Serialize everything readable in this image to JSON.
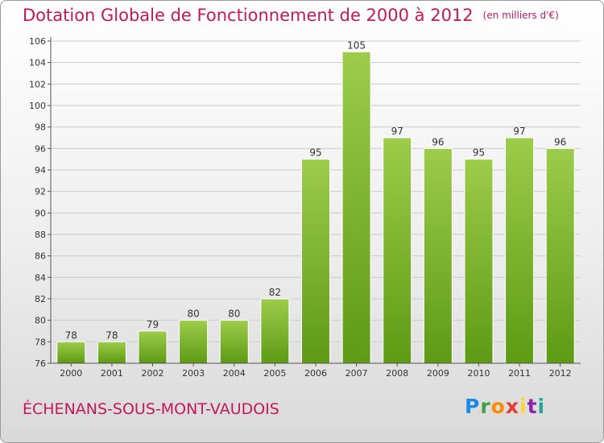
{
  "chart_data": {
    "type": "bar",
    "title": "Dotation Globale de Fonctionnement de 2000 à 2012",
    "subtitle": "(en milliers d'€)",
    "categories": [
      "2000",
      "2001",
      "2002",
      "2003",
      "2004",
      "2005",
      "2006",
      "2007",
      "2008",
      "2009",
      "2010",
      "2011",
      "2012"
    ],
    "values": [
      78,
      78,
      79,
      80,
      80,
      82,
      95,
      105,
      97,
      96,
      95,
      97,
      96
    ],
    "yticks": [
      76,
      78,
      80,
      82,
      84,
      86,
      88,
      90,
      92,
      94,
      96,
      98,
      100,
      102,
      104,
      106
    ],
    "ylim": [
      76,
      106
    ],
    "xlabel": "",
    "ylabel": "",
    "grid": true,
    "bar_color_top": "#9ccc4a",
    "bar_color_bottom": "#5e9a14"
  },
  "footer": {
    "commune": "ÉCHENANS-SOUS-MONT-VAUDOIS",
    "logo": {
      "p": "P",
      "r": "r",
      "o": "o",
      "x": "x",
      "i1": "i",
      "t": "t",
      "i2": "i"
    }
  },
  "colors": {
    "title": "#c2185b",
    "grid": "#cccccc",
    "axis": "#555555"
  }
}
